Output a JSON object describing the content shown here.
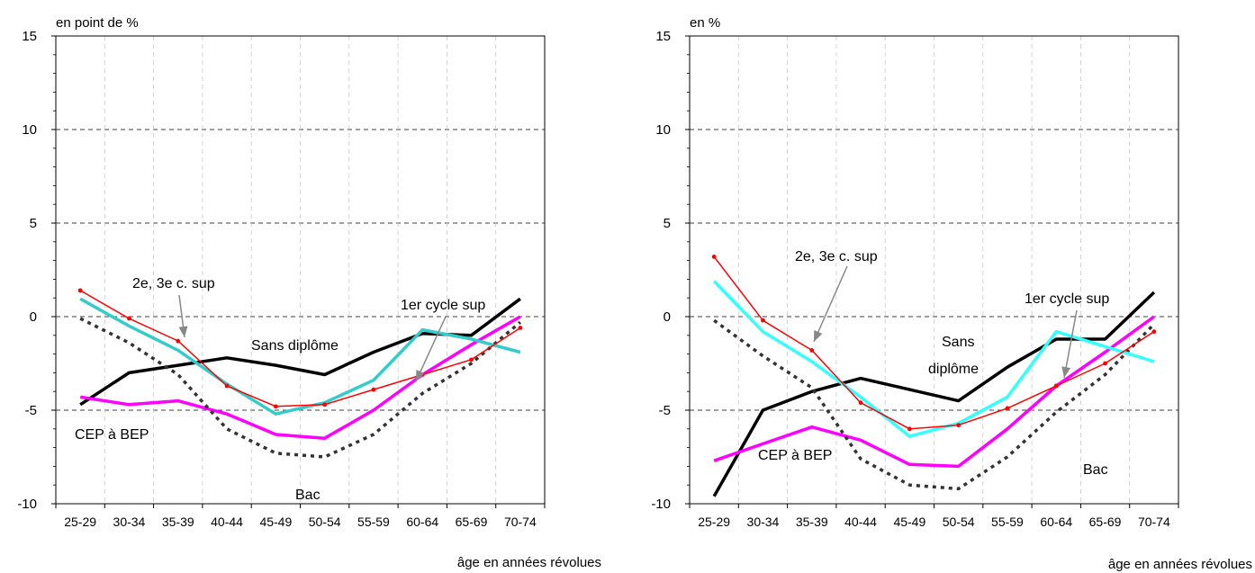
{
  "chart_data": [
    {
      "type": "line",
      "unit_label": "en point de %",
      "xlabel": "âge en années révolues",
      "categories": [
        "25-29",
        "30-34",
        "35-39",
        "40-44",
        "45-49",
        "50-54",
        "55-59",
        "60-64",
        "65-69",
        "70-74"
      ],
      "ylim": [
        -10,
        15
      ],
      "yticks": [
        -10,
        -5,
        0,
        5,
        10,
        15
      ],
      "grid": true,
      "series": [
        {
          "name": "Sans diplôme",
          "color": "#000000",
          "style": "solid",
          "values": [
            -4.7,
            -3.0,
            -2.6,
            -2.2,
            -2.6,
            -3.1,
            -1.9,
            -0.9,
            -1.0,
            0.95
          ]
        },
        {
          "name": "CEP à BEP",
          "color": "#ff00ff",
          "style": "solid",
          "values": [
            -4.3,
            -4.7,
            -4.5,
            -5.2,
            -6.3,
            -6.5,
            -5.0,
            -3.1,
            -1.5,
            0.0
          ]
        },
        {
          "name": "Bac",
          "color": "#333333",
          "style": "dashed",
          "values": [
            -0.1,
            -1.4,
            -3.1,
            -6.0,
            -7.3,
            -7.5,
            -6.3,
            -4.1,
            -2.5,
            -0.3
          ]
        },
        {
          "name": "1er cycle sup",
          "color": "#33cccc",
          "style": "solid",
          "values": [
            0.95,
            -0.5,
            -1.8,
            -3.6,
            -5.2,
            -4.6,
            -3.4,
            -0.7,
            -1.2,
            -1.9
          ]
        },
        {
          "name": "2e, 3e c. sup",
          "color": "#ff0000",
          "style": "solid-marker",
          "values": [
            1.4,
            -0.1,
            -1.3,
            -3.7,
            -4.8,
            -4.7,
            -3.9,
            -3.1,
            -2.3,
            -0.6
          ]
        }
      ],
      "annotations": [
        {
          "text": "2e, 3e c. sup"
        },
        {
          "text": "1er cycle sup"
        },
        {
          "text": "Sans diplôme"
        },
        {
          "text": "CEP à BEP"
        },
        {
          "text": "Bac"
        }
      ]
    },
    {
      "type": "line",
      "unit_label": "en %",
      "xlabel": "âge en années révolues",
      "categories": [
        "25-29",
        "30-34",
        "35-39",
        "40-44",
        "45-49",
        "50-54",
        "55-59",
        "60-64",
        "65-69",
        "70-74"
      ],
      "ylim": [
        -10,
        15
      ],
      "yticks": [
        -10,
        -5,
        0,
        5,
        10,
        15
      ],
      "grid": true,
      "series": [
        {
          "name": "Sans diplôme",
          "color": "#000000",
          "style": "solid",
          "values": [
            -9.6,
            -5.0,
            -4.0,
            -3.3,
            -3.9,
            -4.5,
            -2.7,
            -1.2,
            -1.2,
            1.3
          ]
        },
        {
          "name": "CEP à BEP",
          "color": "#ff00ff",
          "style": "solid",
          "values": [
            -7.7,
            -6.8,
            -5.9,
            -6.6,
            -7.9,
            -8.0,
            -6.0,
            -3.7,
            -1.9,
            0.0
          ]
        },
        {
          "name": "Bac",
          "color": "#333333",
          "style": "dashed",
          "values": [
            -0.2,
            -2.1,
            -3.8,
            -7.6,
            -9.0,
            -9.2,
            -7.5,
            -5.1,
            -3.1,
            -0.4
          ]
        },
        {
          "name": "1er cycle sup",
          "color": "#33ffff",
          "style": "solid",
          "values": [
            1.9,
            -0.8,
            -2.4,
            -4.3,
            -6.4,
            -5.7,
            -4.3,
            -0.8,
            -1.6,
            -2.4
          ]
        },
        {
          "name": "2e, 3e c. sup",
          "color": "#ff0000",
          "style": "solid-marker",
          "values": [
            3.2,
            -0.2,
            -1.8,
            -4.6,
            -6.0,
            -5.8,
            -4.9,
            -3.7,
            -2.5,
            -0.8
          ]
        }
      ],
      "annotations": [
        {
          "text": "2e, 3e c. sup"
        },
        {
          "text": "1er cycle sup"
        },
        {
          "text": "Sans"
        },
        {
          "text": "diplôme"
        },
        {
          "text": "CEP à BEP"
        },
        {
          "text": "Bac"
        }
      ]
    }
  ]
}
